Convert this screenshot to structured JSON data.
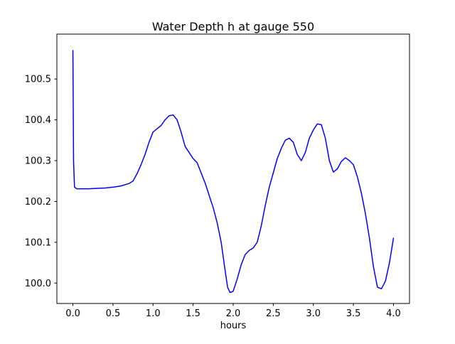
{
  "figure": {
    "background_color": "#ffffff",
    "axes_color": "#000000",
    "text_color": "#000000"
  },
  "chart_data": {
    "type": "line",
    "title": "Water Depth h at gauge 550",
    "xlabel": "hours",
    "ylabel": "",
    "line_color": "#0000ff",
    "line_width": 1.5,
    "grid": false,
    "legend": null,
    "xlim": [
      -0.2,
      4.2
    ],
    "ylim": [
      99.95,
      100.61
    ],
    "xticks": [
      0.0,
      0.5,
      1.0,
      1.5,
      2.0,
      2.5,
      3.0,
      3.5,
      4.0
    ],
    "xtick_labels": [
      "0.0",
      "0.5",
      "1.0",
      "1.5",
      "2.0",
      "2.5",
      "3.0",
      "3.5",
      "4.0"
    ],
    "yticks": [
      100.0,
      100.1,
      100.2,
      100.3,
      100.4,
      100.5
    ],
    "ytick_labels": [
      "100.0",
      "100.1",
      "100.2",
      "100.3",
      "100.4",
      "100.5"
    ],
    "series": [
      {
        "name": "water-depth-h",
        "x": [
          0,
          0.008,
          0.02,
          0.05,
          0.1,
          0.2,
          0.3,
          0.4,
          0.5,
          0.6,
          0.7,
          0.75,
          0.8,
          0.85,
          0.9,
          0.95,
          1.0,
          1.05,
          1.1,
          1.15,
          1.2,
          1.25,
          1.3,
          1.35,
          1.4,
          1.45,
          1.5,
          1.55,
          1.6,
          1.65,
          1.7,
          1.75,
          1.8,
          1.85,
          1.9,
          1.93,
          1.96,
          2.0,
          2.05,
          2.1,
          2.15,
          2.2,
          2.25,
          2.3,
          2.35,
          2.4,
          2.45,
          2.5,
          2.55,
          2.6,
          2.65,
          2.7,
          2.75,
          2.8,
          2.85,
          2.9,
          2.95,
          3.0,
          3.05,
          3.1,
          3.15,
          3.2,
          3.25,
          3.3,
          3.35,
          3.4,
          3.45,
          3.5,
          3.55,
          3.6,
          3.65,
          3.7,
          3.75,
          3.8,
          3.85,
          3.9,
          3.95,
          4.0
        ],
        "y": [
          100.57,
          100.3,
          100.235,
          100.231,
          100.231,
          100.231,
          100.232,
          100.233,
          100.235,
          100.238,
          100.244,
          100.25,
          100.268,
          100.29,
          100.315,
          100.345,
          100.37,
          100.378,
          100.386,
          100.4,
          100.41,
          100.412,
          100.4,
          100.37,
          100.335,
          100.32,
          100.305,
          100.295,
          100.27,
          100.245,
          100.215,
          100.185,
          100.148,
          100.1,
          100.03,
          99.99,
          99.977,
          99.98,
          100.01,
          100.045,
          100.07,
          100.08,
          100.086,
          100.1,
          100.14,
          100.19,
          100.235,
          100.27,
          100.305,
          100.33,
          100.35,
          100.355,
          100.345,
          100.315,
          100.3,
          100.32,
          100.355,
          100.375,
          100.39,
          100.388,
          100.355,
          100.3,
          100.272,
          100.28,
          100.298,
          100.307,
          100.3,
          100.29,
          100.26,
          100.22,
          100.17,
          100.11,
          100.04,
          99.99,
          99.986,
          100.005,
          100.05,
          100.11
        ]
      }
    ]
  }
}
